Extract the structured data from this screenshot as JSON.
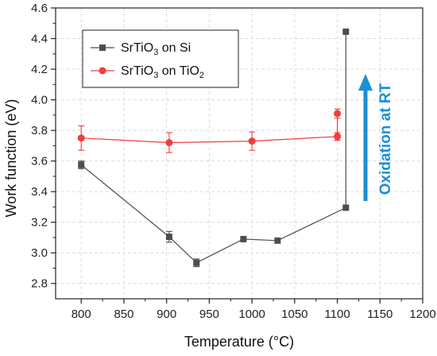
{
  "chart_data": {
    "type": "scatter",
    "title": "",
    "xlabel": "Temperature (°C)",
    "ylabel": "Work function (eV)",
    "xlim": [
      770,
      1200
    ],
    "ylim": [
      2.7,
      4.6
    ],
    "xticks": [
      800,
      850,
      900,
      950,
      1000,
      1050,
      1100,
      1150,
      1200
    ],
    "yticks": [
      2.8,
      3.0,
      3.2,
      3.4,
      3.6,
      3.8,
      4.0,
      4.2,
      4.4,
      4.6
    ],
    "xtick_labels": [
      "800",
      "850",
      "900",
      "950",
      "1000",
      "1050",
      "1100",
      "1150",
      "1200"
    ],
    "ytick_labels": [
      "2.8",
      "3.0",
      "3.2",
      "3.4",
      "3.6",
      "3.8",
      "4.0",
      "4.2",
      "4.4",
      "4.6"
    ],
    "grid": true,
    "legend_position": "top-left",
    "series": [
      {
        "name": "SrTiO3 on Si",
        "name_base": "SrTiO",
        "name_sub": "3",
        "name_rest": " on Si",
        "color": "#4d4d4d",
        "marker": "square",
        "x": [
          800,
          903,
          935,
          990,
          1030,
          1110,
          1110
        ],
        "y": [
          3.575,
          3.105,
          2.935,
          3.09,
          3.08,
          3.295,
          4.445
        ],
        "err": [
          0.025,
          0.035,
          0.025,
          0,
          0,
          0,
          0
        ]
      },
      {
        "name": "SrTiO3 on TiO2",
        "name_base": "SrTiO",
        "name_sub": "3",
        "name_rest": " on TiO",
        "name_sub2": "2",
        "color": "#f03c3c",
        "marker": "circle",
        "x": [
          800,
          903,
          1000,
          1100,
          1100
        ],
        "y": [
          3.75,
          3.72,
          3.73,
          3.76,
          3.91
        ],
        "err": [
          0.08,
          0.065,
          0.06,
          0.025,
          0.03
        ]
      }
    ],
    "annotation": {
      "text": "Oxidation at RT",
      "color": "#1a8fd6",
      "arrow": "up"
    }
  }
}
